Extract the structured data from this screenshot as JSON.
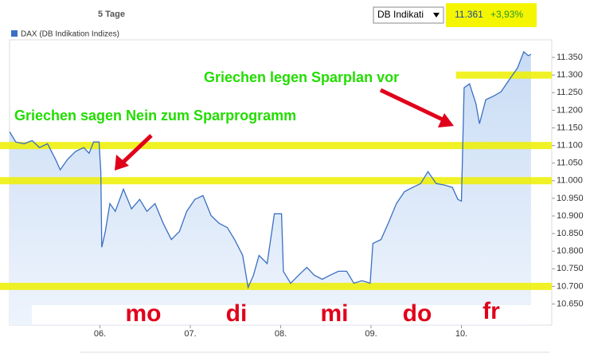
{
  "chart_data": {
    "type": "line",
    "header": {
      "period": "5 Tage",
      "selector": "DB Indikati",
      "last_value": "11.361",
      "change": "+3,93%"
    },
    "series": [
      {
        "name": "DAX (DB Indikation Indizes)",
        "color": "#3a6fc4",
        "x": [
          5.0,
          5.07,
          5.16,
          5.25,
          5.33,
          5.42,
          5.51,
          5.56,
          5.64,
          5.73,
          5.82,
          5.88,
          5.93,
          5.99,
          6.01,
          6.02,
          6.06,
          6.11,
          6.17,
          6.26,
          6.35,
          6.44,
          6.52,
          6.61,
          6.7,
          6.79,
          6.88,
          6.96,
          7.05,
          7.14,
          7.23,
          7.32,
          7.41,
          7.49,
          7.58,
          7.64,
          7.7,
          7.76,
          7.85,
          7.93,
          8.01,
          8.03,
          8.11,
          8.2,
          8.29,
          8.37,
          8.46,
          8.55,
          8.64,
          8.73,
          8.81,
          8.9,
          8.99,
          9.02,
          9.11,
          9.19,
          9.28,
          9.37,
          9.46,
          9.55,
          9.63,
          9.72,
          9.81,
          9.9,
          9.96,
          10.0,
          10.03,
          10.09,
          10.16,
          10.2,
          10.27,
          10.36,
          10.44,
          10.53,
          10.62,
          10.69,
          10.74,
          10.77
        ],
        "values": [
          11139,
          11110,
          11105,
          11114,
          11094,
          11105,
          11060,
          11031,
          11060,
          11083,
          11094,
          11078,
          11110,
          11110,
          11026,
          10811,
          10856,
          10935,
          10913,
          10976,
          10920,
          10947,
          10913,
          10935,
          10879,
          10833,
          10856,
          10913,
          10947,
          10958,
          10901,
          10879,
          10867,
          10833,
          10788,
          10697,
          10732,
          10788,
          10765,
          10906,
          10906,
          10743,
          10709,
          10732,
          10754,
          10732,
          10720,
          10732,
          10743,
          10743,
          10709,
          10716,
          10709,
          10822,
          10833,
          10879,
          10935,
          10969,
          10981,
          10992,
          11026,
          10992,
          10988,
          10981,
          10947,
          10942,
          11264,
          11275,
          11219,
          11162,
          11230,
          11241,
          11253,
          11287,
          11320,
          11366,
          11355,
          11359
        ]
      }
    ],
    "xlim": [
      5,
      11
    ],
    "xticks": [
      {
        "value": 6,
        "label": "06."
      },
      {
        "value": 7,
        "label": "07."
      },
      {
        "value": 8,
        "label": "08."
      },
      {
        "value": 9,
        "label": "09."
      },
      {
        "value": 10,
        "label": "10."
      }
    ],
    "ylim": [
      10590,
      11400
    ],
    "yticks": [
      {
        "value": 10650,
        "label": "10.650"
      },
      {
        "value": 10700,
        "label": "10.700"
      },
      {
        "value": 10750,
        "label": "10.750"
      },
      {
        "value": 10800,
        "label": "10.800"
      },
      {
        "value": 10850,
        "label": "10.850"
      },
      {
        "value": 10900,
        "label": "10.900"
      },
      {
        "value": 10950,
        "label": "10.950"
      },
      {
        "value": 11000,
        "label": "11.000"
      },
      {
        "value": 11050,
        "label": "11.050"
      },
      {
        "value": 11100,
        "label": "11.100"
      },
      {
        "value": 11150,
        "label": "11.150"
      },
      {
        "value": 11200,
        "label": "11.200"
      },
      {
        "value": 11250,
        "label": "11.250"
      },
      {
        "value": 11300,
        "label": "11.300"
      },
      {
        "value": 11350,
        "label": "11.350"
      }
    ],
    "grid": true,
    "band_color": "#eef000",
    "bands": [
      {
        "y": 11100
      },
      {
        "y": 11000
      },
      {
        "y": 10700
      },
      {
        "y": 11300,
        "x_start": 9.94
      }
    ],
    "annotations": [
      "Griechen sagen Nein zum Sparprogramm",
      "Griechen legen Sparplan vor"
    ],
    "day_labels": [
      "mo",
      "di",
      "mi",
      "do",
      "fr"
    ]
  }
}
